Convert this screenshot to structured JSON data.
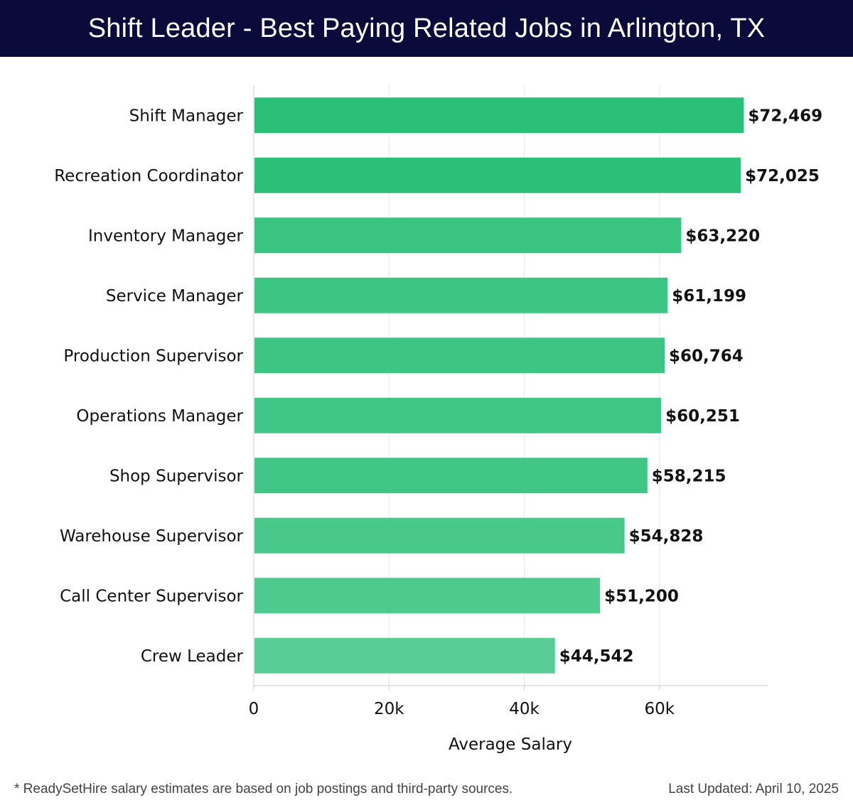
{
  "header": {
    "title": "Shift Leader - Best Paying Related Jobs in Arlington, TX"
  },
  "chart_data": {
    "type": "bar",
    "orientation": "horizontal",
    "categories": [
      "Shift Manager",
      "Recreation Coordinator",
      "Inventory Manager",
      "Service Manager",
      "Production Supervisor",
      "Operations Manager",
      "Shop Supervisor",
      "Warehouse Supervisor",
      "Call Center Supervisor",
      "Crew Leader"
    ],
    "values": [
      72469,
      72025,
      63220,
      61199,
      60764,
      60251,
      58215,
      54828,
      51200,
      44542
    ],
    "value_labels": [
      "$72,469",
      "$72,025",
      "$63,220",
      "$61,199",
      "$60,764",
      "$60,251",
      "$58,215",
      "$54,828",
      "$51,200",
      "$44,542"
    ],
    "xlabel": "Average Salary",
    "ylabel": "",
    "xlim": [
      0,
      76000
    ],
    "xticks": [
      0,
      20000,
      40000,
      60000
    ],
    "xtick_labels": [
      "0",
      "20k",
      "40k",
      "60k"
    ],
    "grid": true,
    "colors": {
      "bar_high": "#2abf77",
      "bar_low": "#5acd96",
      "grid": "#e6e6e6",
      "axis": "#cccccc",
      "text": "#111111"
    }
  },
  "footer": {
    "note": "* ReadySetHire salary estimates are based on job postings and third-party sources.",
    "updated": "Last Updated: April 10, 2025"
  }
}
